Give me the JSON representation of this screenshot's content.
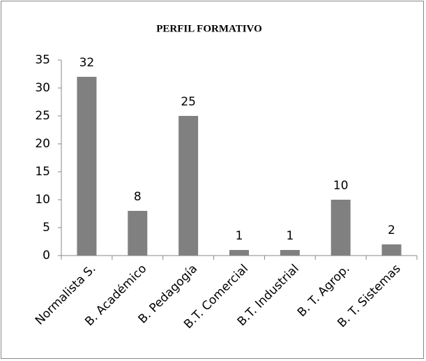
{
  "chart_data": {
    "type": "bar",
    "title": "PERFIL FORMATIVO",
    "categories": [
      "Normalista S.",
      "B. Académico",
      "B. Pedagogía",
      "B.T. Comercial",
      "B.T. Industrial",
      "B. T. Agrop.",
      "B. T. Sistemas"
    ],
    "values": [
      32,
      8,
      25,
      1,
      1,
      10,
      2
    ],
    "color": "#808080",
    "ylim": [
      0,
      35
    ],
    "yticks": [
      0,
      5,
      10,
      15,
      20,
      25,
      30,
      35
    ],
    "grid": false
  }
}
